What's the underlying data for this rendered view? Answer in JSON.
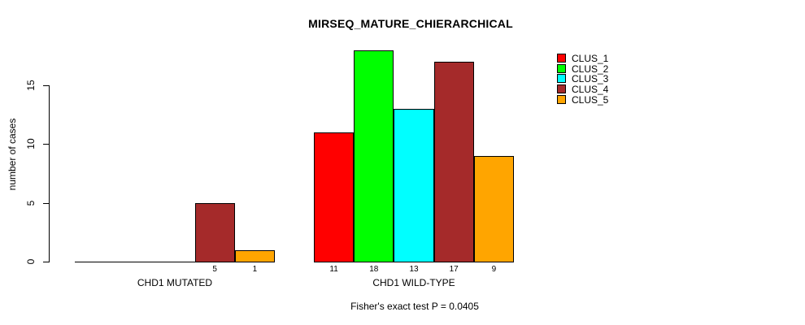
{
  "chart_data": {
    "type": "bar",
    "title": "MIRSEQ_MATURE_CHIERARCHICAL",
    "xlabel": "",
    "ylabel": "number of cases",
    "annotation": "Fisher's exact test P = 0.0405",
    "yticks": [
      0,
      5,
      10,
      15
    ],
    "ylim": [
      0,
      18
    ],
    "grid": false,
    "legend_position": "right-top",
    "bar_border_color": "#000000",
    "series_names": [
      "CLUS_1",
      "CLUS_2",
      "CLUS_3",
      "CLUS_4",
      "CLUS_5"
    ],
    "colors": [
      "#FF0000",
      "#00FF00",
      "#00FFFF",
      "#A52A2A",
      "#FFA500"
    ],
    "categories": [
      "CHD1 MUTATED",
      "CHD1 WILD-TYPE"
    ],
    "groups": [
      {
        "label": "CHD1 MUTATED",
        "values": [
          0,
          0,
          0,
          5,
          1
        ]
      },
      {
        "label": "CHD1 WILD-TYPE",
        "values": [
          11,
          18,
          13,
          17,
          9
        ]
      }
    ]
  }
}
